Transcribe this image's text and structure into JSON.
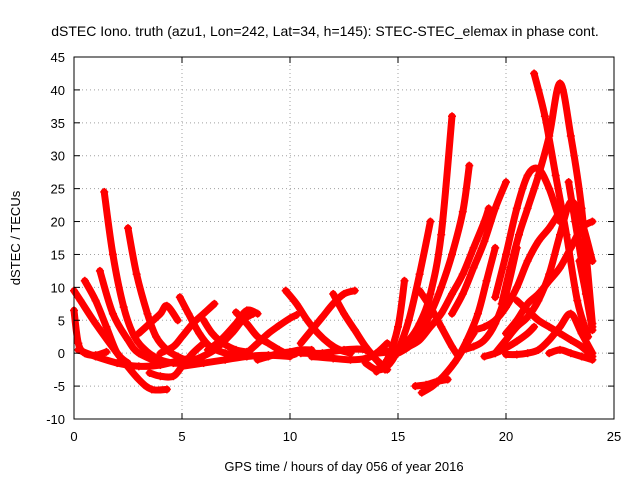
{
  "chart_data": {
    "type": "scatter",
    "title": "dSTEC Iono. truth (azu1, Lon=242, Lat=34, h=145): STEC-STEC_elemax in phase cont.",
    "xlabel": "GPS time / hours of day 056 of year 2016",
    "ylabel": "dSTEC  / TECUs",
    "xlim": [
      0,
      25
    ],
    "ylim": [
      -10,
      45
    ],
    "xticks": [
      0,
      5,
      10,
      15,
      20,
      25
    ],
    "yticks": [
      -10,
      -5,
      0,
      5,
      10,
      15,
      20,
      25,
      30,
      35,
      40,
      45
    ],
    "grid": true,
    "marker": "+",
    "color": "#ff0000",
    "series": [
      {
        "x": [
          0.0,
          0.3,
          1.0,
          2.0,
          3.0,
          3.6,
          4.3
        ],
        "y": [
          9.5,
          8.0,
          4.5,
          0.0,
          -4.0,
          -5.5,
          -5.5
        ]
      },
      {
        "x": [
          0.0,
          0.2,
          0.5,
          1.0,
          1.5
        ],
        "y": [
          6.5,
          1.5,
          0.0,
          -0.3,
          0.2
        ]
      },
      {
        "x": [
          0.5,
          1.0,
          1.5,
          2.0,
          2.5
        ],
        "y": [
          11.0,
          8.0,
          4.0,
          0.0,
          -1.5
        ]
      },
      {
        "x": [
          1.4,
          1.8,
          2.3,
          2.8,
          3.4,
          4.0,
          4.6,
          5.0
        ],
        "y": [
          24.5,
          15.0,
          7.0,
          2.5,
          0.2,
          -1.0,
          -1.5,
          -1.5
        ]
      },
      {
        "x": [
          1.2,
          1.8,
          2.5,
          3.0,
          4.0
        ],
        "y": [
          12.5,
          6.0,
          2.0,
          0.0,
          -1.5
        ]
      },
      {
        "x": [
          2.5,
          2.9,
          3.4,
          3.8,
          4.3,
          4.8,
          5.3,
          5.8
        ],
        "y": [
          19.0,
          12.0,
          6.0,
          2.5,
          0.5,
          -0.5,
          -1.2,
          -1.5
        ]
      },
      {
        "x": [
          0.2,
          1.0,
          2.0,
          3.0,
          4.0,
          5.0,
          5.5
        ],
        "y": [
          0.5,
          -0.5,
          -1.5,
          -2.0,
          -1.8,
          -1.0,
          -0.8
        ]
      },
      {
        "x": [
          3.0,
          3.5,
          4.0,
          4.3,
          4.8
        ],
        "y": [
          3.0,
          4.5,
          6.0,
          7.2,
          5.0
        ]
      },
      {
        "x": [
          3.5,
          4.0,
          4.6,
          5.0,
          5.5,
          6.0
        ],
        "y": [
          -3.0,
          -3.5,
          -3.5,
          -2.0,
          0.0,
          1.5
        ]
      },
      {
        "x": [
          4.0,
          4.6,
          5.0,
          5.5,
          6.0,
          6.5
        ],
        "y": [
          0.0,
          1.0,
          2.5,
          4.5,
          6.0,
          7.5
        ]
      },
      {
        "x": [
          4.9,
          5.3,
          5.8,
          6.3,
          7.0,
          7.8
        ],
        "y": [
          8.5,
          6.0,
          3.0,
          1.0,
          0.0,
          -0.5
        ]
      },
      {
        "x": [
          5.0,
          5.6,
          6.5,
          7.3,
          7.8,
          8.3
        ],
        "y": [
          -1.5,
          -1.0,
          0.5,
          3.0,
          5.0,
          6.0
        ]
      },
      {
        "x": [
          5.0,
          6.0,
          7.0,
          8.0,
          9.0,
          10.0
        ],
        "y": [
          -2.0,
          -1.5,
          -1.0,
          -0.5,
          -0.3,
          -0.5
        ]
      },
      {
        "x": [
          6.0,
          6.4,
          6.9,
          7.5,
          8.0
        ],
        "y": [
          5.0,
          3.0,
          1.5,
          0.5,
          0.2
        ]
      },
      {
        "x": [
          6.2,
          6.8,
          7.5,
          8.0,
          8.5
        ],
        "y": [
          0.5,
          2.0,
          4.5,
          6.5,
          6.0
        ]
      },
      {
        "x": [
          7.5,
          8.0,
          8.5,
          9.0,
          9.5,
          10.0,
          10.3
        ],
        "y": [
          6.2,
          4.5,
          2.5,
          1.5,
          0.5,
          -0.3,
          0.0
        ]
      },
      {
        "x": [
          8.0,
          8.5,
          9.0,
          9.5,
          10.0,
          10.3
        ],
        "y": [
          0.0,
          1.5,
          3.0,
          4.2,
          5.3,
          5.8
        ]
      },
      {
        "x": [
          8.5,
          9.0,
          9.5,
          10.0,
          10.5,
          11.0
        ],
        "y": [
          -1.0,
          -0.5,
          0.0,
          0.2,
          0.5,
          0.5
        ]
      },
      {
        "x": [
          9.8,
          10.3,
          10.8,
          11.3,
          11.8,
          12.3,
          12.8
        ],
        "y": [
          9.5,
          7.5,
          5.0,
          3.0,
          1.5,
          0.5,
          0.0
        ]
      },
      {
        "x": [
          10.5,
          11.0,
          11.5,
          12.0,
          12.5,
          13.0
        ],
        "y": [
          1.5,
          3.5,
          5.5,
          7.5,
          9.0,
          9.5
        ]
      },
      {
        "x": [
          12.0,
          12.5,
          13.0,
          13.5,
          14.0,
          14.4
        ],
        "y": [
          9.0,
          6.0,
          3.5,
          1.0,
          -1.0,
          -2.5
        ]
      },
      {
        "x": [
          10.5,
          11.5,
          12.5,
          13.5,
          14.0,
          14.5
        ],
        "y": [
          0.0,
          0.0,
          0.5,
          0.5,
          -1.0,
          -2.5
        ]
      },
      {
        "x": [
          11.0,
          12.0,
          12.8,
          13.5,
          14.0,
          14.5
        ],
        "y": [
          -0.5,
          -0.8,
          -1.0,
          -0.8,
          0.0,
          1.5
        ]
      },
      {
        "x": [
          13.5,
          14.0,
          14.5,
          15.0,
          15.5,
          16.0,
          16.5
        ],
        "y": [
          -1.5,
          -2.5,
          -2.0,
          0.5,
          5.0,
          12.0,
          20.0
        ]
      },
      {
        "x": [
          14.0,
          14.5,
          15.0,
          15.3
        ],
        "y": [
          -2.8,
          -1.0,
          4.0,
          11.0
        ]
      },
      {
        "x": [
          14.0,
          14.5,
          15.0,
          15.5,
          16.0,
          16.5,
          17.0,
          17.5
        ],
        "y": [
          0.0,
          0.2,
          0.8,
          2.0,
          4.5,
          9.0,
          18.0,
          36.0
        ]
      },
      {
        "x": [
          15.0,
          15.5,
          16.0,
          16.5,
          17.0,
          17.5,
          18.0,
          18.3
        ],
        "y": [
          0.0,
          1.0,
          3.0,
          6.0,
          10.0,
          15.0,
          21.5,
          28.5
        ]
      },
      {
        "x": [
          15.5,
          16.0,
          16.5,
          17.0,
          17.5,
          18.0,
          18.5,
          19.0,
          19.2
        ],
        "y": [
          1.0,
          2.0,
          4.0,
          6.0,
          9.0,
          12.0,
          16.0,
          20.0,
          22.0
        ]
      },
      {
        "x": [
          16.0,
          16.5,
          17.0,
          17.5,
          17.8
        ],
        "y": [
          9.5,
          7.0,
          4.0,
          1.0,
          -0.5
        ]
      },
      {
        "x": [
          16.1,
          16.6,
          17.1,
          17.6,
          18.1,
          18.5
        ],
        "y": [
          -6.0,
          -5.0,
          -3.5,
          -1.5,
          1.0,
          3.0
        ]
      },
      {
        "x": [
          15.8,
          16.3,
          16.8,
          17.3
        ],
        "y": [
          -5.0,
          -4.8,
          -4.3,
          -4.0
        ]
      },
      {
        "x": [
          17.5,
          18.0,
          18.5,
          19.0,
          19.5,
          20.0
        ],
        "y": [
          6.0,
          9.0,
          13.0,
          17.0,
          22.0,
          26.0
        ]
      },
      {
        "x": [
          17.8,
          18.2,
          18.7,
          19.1,
          19.5
        ],
        "y": [
          -0.5,
          2.0,
          6.0,
          11.0,
          16.0
        ]
      },
      {
        "x": [
          18.0,
          18.5,
          19.0,
          19.5,
          20.0,
          20.5
        ],
        "y": [
          0.5,
          1.0,
          2.0,
          4.5,
          9.0,
          16.0
        ]
      },
      {
        "x": [
          18.5,
          19.0,
          19.5,
          20.0,
          20.5,
          21.0,
          21.5,
          22.0,
          22.4
        ],
        "y": [
          3.5,
          4.0,
          5.0,
          7.0,
          10.0,
          14.0,
          17.0,
          19.0,
          21.0
        ]
      },
      {
        "x": [
          19.0,
          19.5,
          20.0,
          20.5,
          21.0,
          21.3
        ],
        "y": [
          -0.5,
          0.0,
          0.8,
          1.8,
          3.0,
          4.0
        ]
      },
      {
        "x": [
          19.5,
          20.0,
          20.5,
          21.0,
          21.5,
          22.0,
          22.5
        ],
        "y": [
          8.5,
          15.0,
          22.0,
          27.0,
          28.0,
          25.0,
          20.0
        ]
      },
      {
        "x": [
          19.8,
          20.2,
          20.6,
          21.0,
          21.5,
          22.0,
          22.5,
          23.0,
          23.5,
          24.0
        ],
        "y": [
          7.5,
          13.0,
          18.0,
          22.0,
          27.0,
          33.0,
          41.0,
          33.0,
          22.0,
          4.5
        ]
      },
      {
        "x": [
          19.5,
          20.0,
          20.5,
          21.0,
          21.5,
          22.0,
          22.5,
          23.0,
          23.5,
          24.0
        ],
        "y": [
          0.0,
          2.0,
          4.0,
          5.5,
          8.0,
          12.0,
          18.0,
          23.0,
          20.0,
          14.0
        ]
      },
      {
        "x": [
          20.0,
          20.5,
          21.0,
          21.5,
          22.0,
          22.5,
          23.0,
          23.5,
          24.0
        ],
        "y": [
          3.0,
          5.0,
          7.5,
          9.0,
          11.0,
          13.0,
          16.0,
          19.0,
          20.0
        ]
      },
      {
        "x": [
          20.0,
          20.5,
          21.0,
          21.5,
          22.0,
          22.5,
          23.0,
          23.5,
          24.0
        ],
        "y": [
          -0.2,
          -0.2,
          0.0,
          0.5,
          2.0,
          4.0,
          6.0,
          3.0,
          0.0
        ]
      },
      {
        "x": [
          20.5,
          21.0,
          21.5,
          22.0,
          22.5,
          23.0,
          23.5,
          24.0
        ],
        "y": [
          8.0,
          6.5,
          5.0,
          4.0,
          3.0,
          2.0,
          1.0,
          -0.5
        ]
      },
      {
        "x": [
          21.3,
          21.8,
          22.3,
          22.8,
          23.3,
          23.8
        ],
        "y": [
          42.5,
          36.0,
          27.0,
          18.0,
          8.0,
          2.5
        ]
      },
      {
        "x": [
          22.0,
          22.5,
          23.0,
          23.5,
          24.0
        ],
        "y": [
          0.0,
          0.5,
          0.0,
          -0.5,
          -1.0
        ]
      },
      {
        "x": [
          22.9,
          23.2,
          23.6,
          24.0
        ],
        "y": [
          26.0,
          20.0,
          12.0,
          4.0
        ]
      },
      {
        "x": [
          23.4,
          23.7,
          24.0
        ],
        "y": [
          14.0,
          9.0,
          3.5
        ]
      }
    ]
  }
}
